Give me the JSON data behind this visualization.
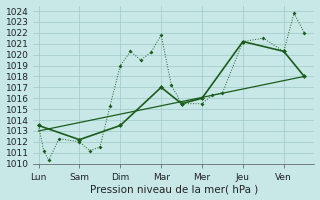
{
  "xlabel": "Pression niveau de la mer( hPa )",
  "bg_color": "#c8e8e8",
  "grid_color": "#a0c8c8",
  "line_color": "#1a5c1a",
  "ylim": [
    1010,
    1024.5
  ],
  "yticks": [
    1010,
    1011,
    1012,
    1013,
    1014,
    1015,
    1016,
    1017,
    1018,
    1019,
    1020,
    1021,
    1022,
    1023,
    1024
  ],
  "day_labels": [
    "Lun",
    "Sam",
    "Dim",
    "Mar",
    "Mer",
    "Jeu",
    "Ven"
  ],
  "day_positions": [
    0,
    4,
    8,
    12,
    16,
    20,
    24
  ],
  "xlim": [
    -0.5,
    27
  ],
  "series1_x": [
    0,
    0.5,
    1,
    2,
    4,
    5,
    6,
    7,
    8,
    9,
    10,
    11,
    12,
    13,
    14,
    16,
    17,
    18,
    20,
    22,
    24,
    25,
    26
  ],
  "series1_y": [
    1013.5,
    1011.2,
    1010.3,
    1012.3,
    1012.0,
    1011.2,
    1011.5,
    1015.3,
    1019.0,
    1020.3,
    1019.5,
    1020.2,
    1021.8,
    1017.2,
    1015.5,
    1015.5,
    1016.3,
    1016.5,
    1021.2,
    1021.5,
    1020.3,
    1023.8,
    1022.0
  ],
  "series2_x": [
    0,
    4,
    8,
    12,
    14,
    16,
    20,
    24,
    26
  ],
  "series2_y": [
    1013.5,
    1012.2,
    1013.5,
    1017.0,
    1015.5,
    1016.0,
    1021.2,
    1020.3,
    1018.0
  ],
  "trend_x": [
    0,
    26
  ],
  "trend_y": [
    1013.0,
    1018.0
  ],
  "marker_size": 2.5,
  "line_width": 1.0,
  "font_size_ticks": 6.5,
  "font_size_xlabel": 7.5
}
